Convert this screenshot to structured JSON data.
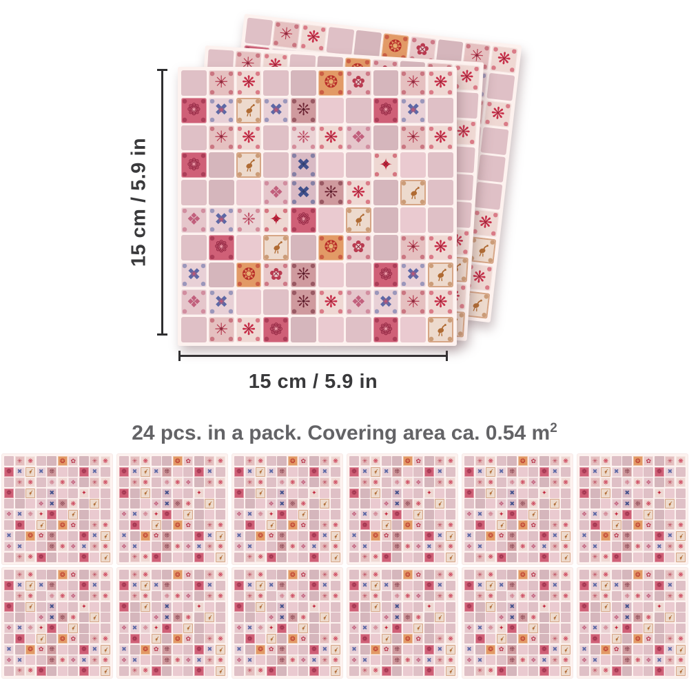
{
  "page": {
    "background": "#ffffff"
  },
  "dimensions": {
    "height_label": "15 cm / 5.9 in",
    "width_label": "15 cm / 5.9 in",
    "line_color": "#2e2e30",
    "label_color": "#39393b"
  },
  "pack_info": {
    "text_main": "24 pcs. in a pack. Covering area ca. 0.54 m",
    "text_sup": "2",
    "color": "#636366"
  },
  "stack": {
    "sheet_count": 3
  },
  "bottom_grid": {
    "rows": 2,
    "cols": 6,
    "sheet_count": 12
  },
  "mosaic": {
    "rows": 10,
    "cols": 10,
    "grout_color": "#fdf2ef",
    "grid": [
      "PABPPJLPAB",
      "CDEDFPPCDP",
      "PABPGBIPAB",
      "CPEPHPPKPP",
      "PPPIHFBPEP",
      "IDGKCPEPPP",
      "PCPEPJLPAB",
      "DPJLFPPCDE",
      "IDPPFBIDAB",
      "PABCPPPCPE"
    ],
    "tile_types": {
      "P": {
        "name": "plain-stone",
        "motif": "plain",
        "bg": "#dfc0c6",
        "fg": "#dfc0c6",
        "glyph": "",
        "glyph2": ""
      },
      "A": {
        "name": "red-rosette",
        "motif": "rosette",
        "bg": "#e5c0c0",
        "fg": "#b5394e",
        "glyph": "✳",
        "glyph2": "✦",
        "fg2": "#8f2a3e"
      },
      "B": {
        "name": "red-star-cross",
        "motif": "star-cross",
        "bg": "#efd8d3",
        "fg": "#c8304a",
        "glyph": "❋",
        "glyph2": "✕",
        "fg2": "#9b1f35"
      },
      "C": {
        "name": "red-mandala",
        "motif": "mandala",
        "bg": "#cf6077",
        "fg": "#8f2440",
        "glyph": "❁",
        "glyph2": "✳",
        "fg2": "#f0a9b4"
      },
      "D": {
        "name": "blue-quatrefoil",
        "motif": "quatrefoil-cross",
        "bg": "#e8d0d6",
        "fg": "#5c68a6",
        "glyph": "✖",
        "glyph2": "❀",
        "fg2": "#bf5672"
      },
      "E": {
        "name": "bird",
        "motif": "bird",
        "bg": "#eddacd",
        "fg": "#b06b33",
        "glyph": "",
        "glyph2": ""
      },
      "F": {
        "name": "dark-snowflake",
        "motif": "snowflake",
        "bg": "#cf9a9e",
        "fg": "#6e2534",
        "glyph": "❊",
        "glyph2": "✦",
        "fg2": "#5a1c2a"
      },
      "G": {
        "name": "light-snowflake",
        "motif": "snowflake",
        "bg": "#ead2d4",
        "fg": "#c2556c",
        "glyph": "❈",
        "glyph2": "•",
        "fg2": "#a23a52"
      },
      "H": {
        "name": "navy-cross",
        "motif": "cross",
        "bg": "#d9bac4",
        "fg": "#41508c",
        "glyph": "✖",
        "glyph2": "✦",
        "fg2": "#32406f"
      },
      "I": {
        "name": "pink-dots",
        "motif": "dot-grid",
        "bg": "#e5c6cb",
        "fg": "#c2607d",
        "glyph": "❖",
        "glyph2": "∘",
        "fg2": "#a84a66"
      },
      "J": {
        "name": "orange-medallion",
        "motif": "medallion",
        "bg": "#e29a66",
        "fg": "#b92f2a",
        "glyph": "❂",
        "glyph2": "✳",
        "fg2": "#e8c27c"
      },
      "K": {
        "name": "red-diamond",
        "motif": "diamond-star",
        "bg": "#eed7d2",
        "fg": "#c2273e",
        "glyph": "✦",
        "glyph2": "✕",
        "fg2": "#8f1d30"
      },
      "L": {
        "name": "red-damask",
        "motif": "damask-flower",
        "bg": "#e8c8c9",
        "fg": "#b93a50",
        "glyph": "✿",
        "glyph2": "✕",
        "fg2": "#8f2a3e"
      }
    }
  }
}
